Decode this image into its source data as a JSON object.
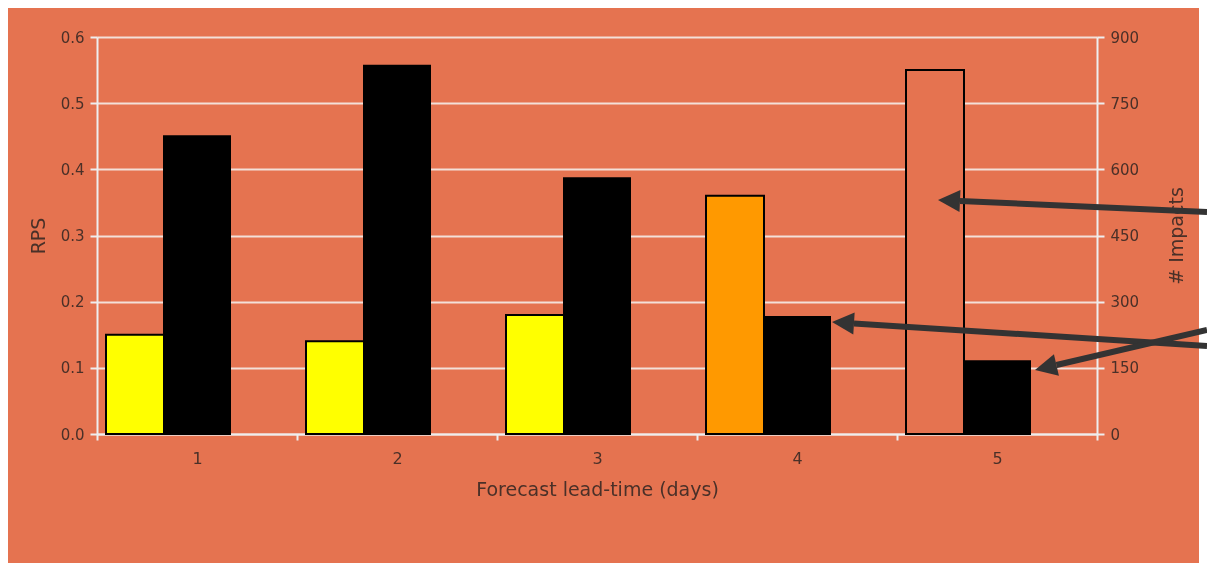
{
  "chart_data": {
    "type": "bar",
    "xlabel": "Forecast lead-time (days)",
    "ylabel": "RPS",
    "y2label": "# Impacts",
    "categories": [
      "1",
      "2",
      "3",
      "4",
      "5"
    ],
    "series": [
      {
        "type": "bar",
        "axis": "y",
        "colors": [
          "#ffff00",
          "#ffff00",
          "#ffff00",
          "#ff9900",
          "#e57350"
        ],
        "values": [
          0.15,
          0.14,
          0.18,
          0.36,
          0.55
        ]
      },
      {
        "type": "bar",
        "axis": "y2",
        "color": "#000000",
        "values": [
          675,
          835,
          580,
          265,
          165
        ]
      }
    ],
    "ylim": [
      0,
      0.6
    ],
    "yticks": [
      {
        "value": 0,
        "label": "0.0"
      },
      0.1,
      0.2,
      0.3,
      0.4,
      0.5,
      0.6
    ],
    "y2lim": [
      0,
      900
    ],
    "y2ticks": [
      0,
      150,
      300,
      450,
      600,
      750,
      900
    ],
    "grid": "y",
    "legend": false
  }
}
